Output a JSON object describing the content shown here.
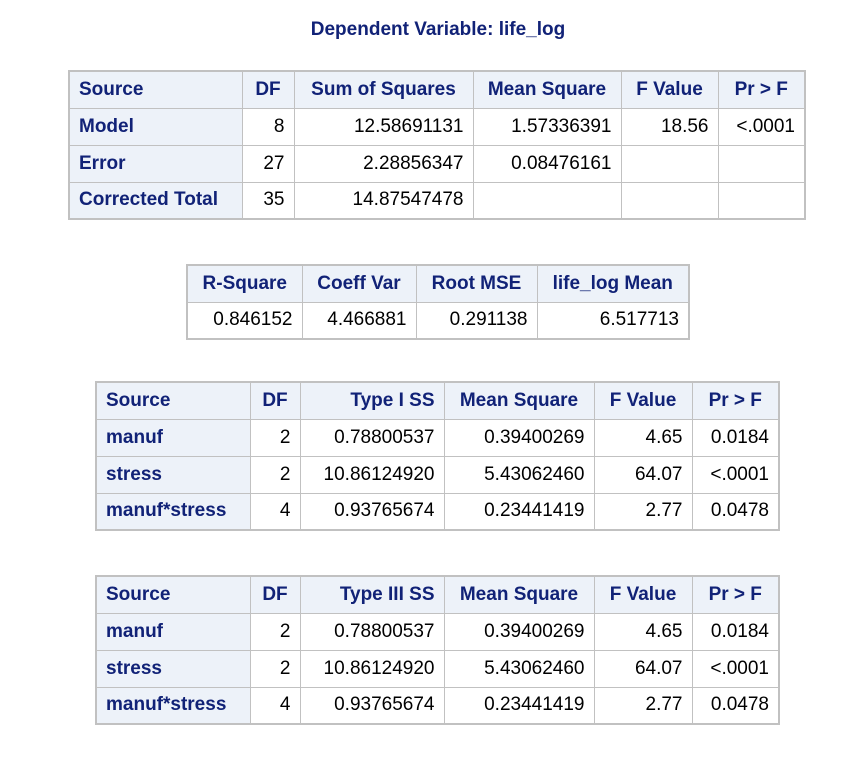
{
  "title": "Dependent Variable: life_log",
  "anova": {
    "headers": [
      "Source",
      "DF",
      "Sum of Squares",
      "Mean Square",
      "F Value",
      "Pr > F"
    ],
    "rows": [
      {
        "source": "Model",
        "df": "8",
        "ss": "12.58691131",
        "ms": "1.57336391",
        "f": "18.56",
        "p": "<.0001"
      },
      {
        "source": "Error",
        "df": "27",
        "ss": "2.28856347",
        "ms": "0.08476161",
        "f": "",
        "p": ""
      },
      {
        "source": "Corrected Total",
        "df": "35",
        "ss": "14.87547478",
        "ms": "",
        "f": "",
        "p": ""
      }
    ]
  },
  "fit": {
    "headers": [
      "R-Square",
      "Coeff Var",
      "Root MSE",
      "life_log Mean"
    ],
    "values": [
      "0.846152",
      "4.466881",
      "0.291138",
      "6.517713"
    ]
  },
  "type1": {
    "headers": [
      "Source",
      "DF",
      "Type I SS",
      "Mean Square",
      "F Value",
      "Pr > F"
    ],
    "rows": [
      {
        "source": "manuf",
        "df": "2",
        "ss": "0.78800537",
        "ms": "0.39400269",
        "f": "4.65",
        "p": "0.0184"
      },
      {
        "source": "stress",
        "df": "2",
        "ss": "10.86124920",
        "ms": "5.43062460",
        "f": "64.07",
        "p": "<.0001"
      },
      {
        "source": "manuf*stress",
        "df": "4",
        "ss": "0.93765674",
        "ms": "0.23441419",
        "f": "2.77",
        "p": "0.0478"
      }
    ]
  },
  "type3": {
    "headers": [
      "Source",
      "DF",
      "Type III SS",
      "Mean Square",
      "F Value",
      "Pr > F"
    ],
    "rows": [
      {
        "source": "manuf",
        "df": "2",
        "ss": "0.78800537",
        "ms": "0.39400269",
        "f": "4.65",
        "p": "0.0184"
      },
      {
        "source": "stress",
        "df": "2",
        "ss": "10.86124920",
        "ms": "5.43062460",
        "f": "64.07",
        "p": "<.0001"
      },
      {
        "source": "manuf*stress",
        "df": "4",
        "ss": "0.93765674",
        "ms": "0.23441419",
        "f": "2.77",
        "p": "0.0478"
      }
    ]
  },
  "colors": {
    "header_text": "#112277",
    "header_bg": "#edf2f9",
    "border": "#c1c1c1"
  }
}
